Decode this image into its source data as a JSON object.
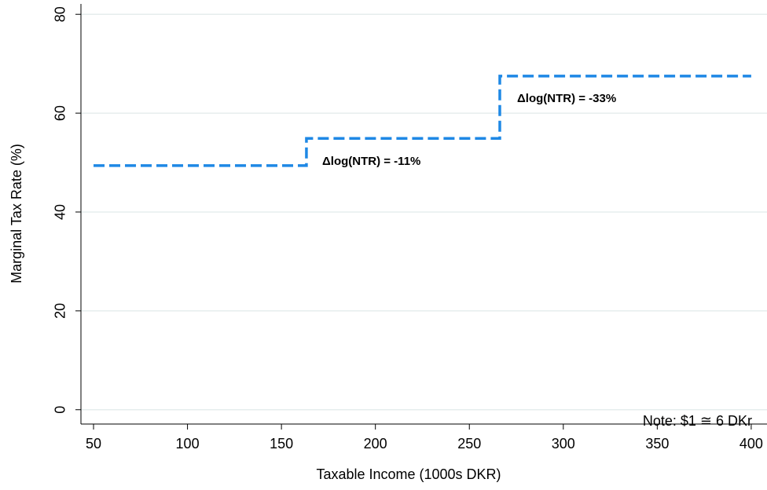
{
  "chart_data": {
    "type": "line",
    "x_label": "Taxable Income (1000s DKR)",
    "y_label": "Marginal Tax Rate (%)",
    "x": [
      50,
      163.3,
      163.3,
      266.2,
      266.2,
      400
    ],
    "values": [
      49.4,
      49.4,
      54.9,
      54.9,
      67.5,
      67.5
    ],
    "color": "#1e88e5",
    "xlim": [
      43.3,
      408.4
    ],
    "xticks": [
      50,
      100,
      150,
      200,
      250,
      300,
      350,
      400
    ],
    "ylim": [
      -2.9,
      82.1
    ],
    "yticks": [
      0,
      20,
      40,
      60,
      80
    ],
    "grid": true,
    "annotations": [
      "Δlog(NTR) = -11%",
      "Δlog(NTR) = -33%"
    ],
    "note": "Note: $1 ≅ 6 DKr"
  }
}
